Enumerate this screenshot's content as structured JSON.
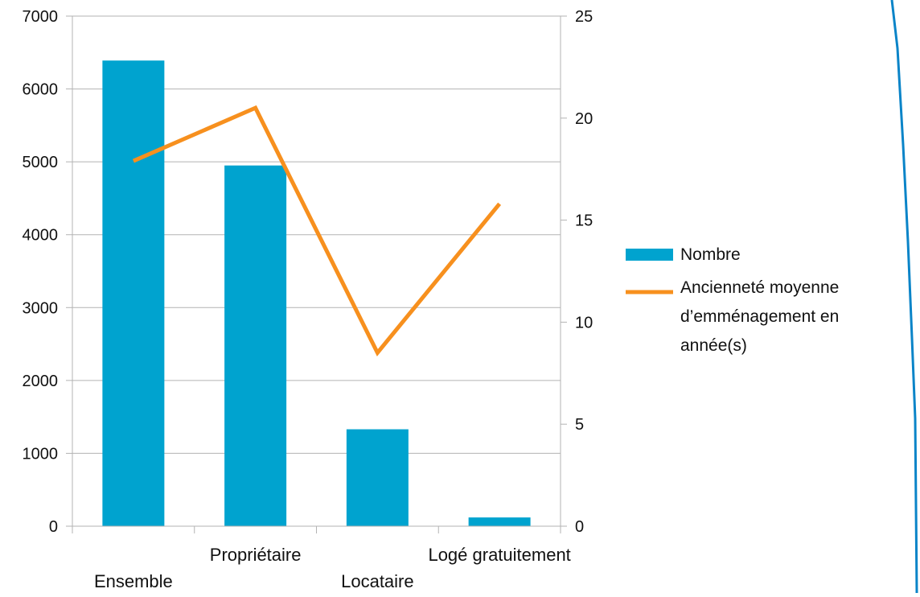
{
  "chart_data": {
    "type": "bar",
    "categories": [
      "Ensemble",
      "Propriétaire",
      "Locataire",
      "Logé gratuitement"
    ],
    "series": [
      {
        "name": "Nombre",
        "type": "bar",
        "axis": "left",
        "color": "#00A3CF",
        "values": [
          6390,
          4950,
          1330,
          120
        ]
      },
      {
        "name": "Ancienneté moyenne d’emménagement en année(s)",
        "legend_lines": [
          "Ancienneté moyenne",
          "d’emménagement en",
          "année(s)"
        ],
        "type": "line",
        "axis": "right",
        "color": "#F7901E",
        "values": [
          17.9,
          20.5,
          8.5,
          15.8
        ]
      }
    ],
    "ylim_left": [
      0,
      7000
    ],
    "yticks_left": [
      "0",
      "1000",
      "2000",
      "3000",
      "4000",
      "5000",
      "6000",
      "7000"
    ],
    "ylim_right": [
      0,
      25
    ],
    "yticks_right": [
      "0",
      "5",
      "10",
      "15",
      "20",
      "25"
    ],
    "grid": true,
    "legend_position": "right",
    "decoration_line_color": "#0A84C8"
  }
}
